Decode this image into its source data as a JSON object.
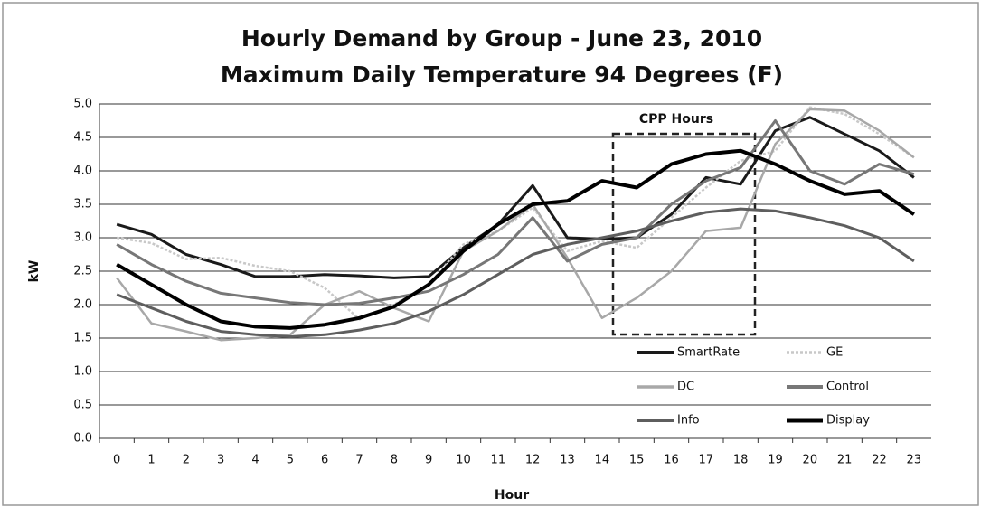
{
  "chart_data": {
    "type": "line",
    "title": "Hourly Demand by Group - June 23, 2010",
    "subtitle": "Maximum Daily Temperature 94 Degrees (F)",
    "x_label": "Hour",
    "y_label": "kW",
    "annotation": "CPP Hours",
    "categories": [
      "0",
      "1",
      "2",
      "3",
      "4",
      "5",
      "6",
      "7",
      "8",
      "9",
      "10",
      "11",
      "12",
      "13",
      "14",
      "15",
      "16",
      "17",
      "18",
      "19",
      "20",
      "21",
      "22",
      "23"
    ],
    "ylim": [
      0,
      5
    ],
    "yticks": [
      {
        "value": 0,
        "label": "0.0"
      },
      {
        "value": 0.5,
        "label": "0.5"
      },
      {
        "value": 1,
        "label": "1.0"
      },
      {
        "value": 1.5,
        "label": "1.5"
      },
      {
        "value": 2,
        "label": "2.0"
      },
      {
        "value": 2.5,
        "label": "2.5"
      },
      {
        "value": 3,
        "label": "3.0"
      },
      {
        "value": 3.5,
        "label": "3.5"
      },
      {
        "value": 4,
        "label": "4.0"
      },
      {
        "value": 4.5,
        "label": "4.5"
      },
      {
        "value": 5,
        "label": "5.0"
      }
    ],
    "grid": true,
    "legend": "lower right",
    "series": [
      {
        "name": "SmartRate",
        "color": "#1a1a1a",
        "values": [
          3.2,
          3.05,
          2.75,
          2.6,
          2.42,
          2.42,
          2.45,
          2.43,
          2.4,
          2.42,
          2.85,
          3.2,
          3.78,
          3.0,
          2.98,
          3.0,
          3.35,
          3.9,
          3.8,
          4.6,
          4.8,
          4.55,
          4.3,
          3.9
        ]
      },
      {
        "name": "GE",
        "color": "#c8c8c8",
        "values": [
          3.0,
          2.92,
          2.68,
          2.7,
          2.58,
          2.5,
          2.25,
          1.78,
          2.0,
          2.3,
          2.9,
          3.1,
          3.45,
          2.8,
          2.95,
          2.85,
          3.3,
          3.75,
          4.15,
          4.3,
          4.95,
          4.85,
          4.55,
          4.2
        ]
      },
      {
        "name": "DC",
        "color": "#a8a8a8",
        "values": [
          2.4,
          1.72,
          1.6,
          1.47,
          1.5,
          1.55,
          2.0,
          2.2,
          1.95,
          1.75,
          2.8,
          3.1,
          3.5,
          2.7,
          1.8,
          2.1,
          2.5,
          3.1,
          3.15,
          4.4,
          4.92,
          4.9,
          4.6,
          4.2
        ]
      },
      {
        "name": "Control",
        "color": "#777777",
        "values": [
          2.9,
          2.6,
          2.35,
          2.17,
          2.1,
          2.03,
          2.0,
          2.02,
          2.1,
          2.2,
          2.45,
          2.75,
          3.3,
          2.65,
          2.9,
          3.0,
          3.5,
          3.85,
          4.05,
          4.75,
          4.0,
          3.8,
          4.1,
          3.95
        ]
      },
      {
        "name": "Info",
        "color": "#5e5e5e",
        "values": [
          2.15,
          1.95,
          1.75,
          1.6,
          1.55,
          1.52,
          1.55,
          1.62,
          1.72,
          1.9,
          2.15,
          2.45,
          2.75,
          2.9,
          3.0,
          3.1,
          3.25,
          3.38,
          3.43,
          3.4,
          3.3,
          3.18,
          3.0,
          2.65
        ]
      },
      {
        "name": "Display",
        "color": "#000000",
        "values": [
          2.6,
          2.3,
          2.0,
          1.75,
          1.67,
          1.65,
          1.7,
          1.8,
          1.97,
          2.3,
          2.8,
          3.2,
          3.5,
          3.55,
          3.85,
          3.75,
          4.1,
          4.25,
          4.3,
          4.1,
          3.85,
          3.65,
          3.7,
          3.35
        ]
      }
    ]
  }
}
